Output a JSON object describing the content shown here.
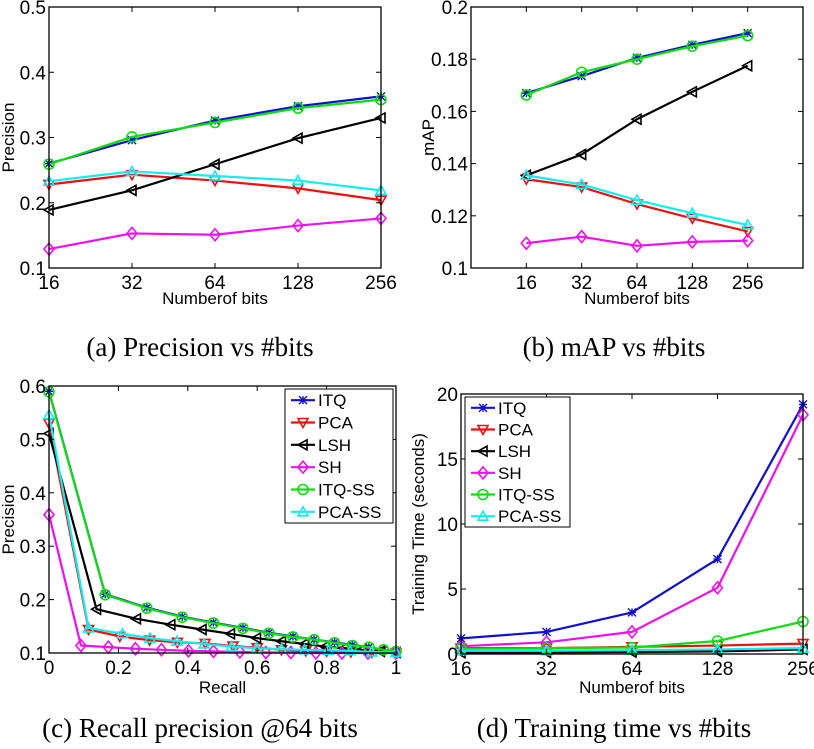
{
  "captions": {
    "a": "(a) Precision vs #bits",
    "b": "(b) mAP vs #bits",
    "c": "(c) Recall precision @64 bits",
    "d": "(d) Training time vs #bits"
  },
  "colors": {
    "ITQ": "#1010d0",
    "PCA": "#ee1010",
    "LSH": "#000000",
    "SH": "#ee10ee",
    "ITQ-SS": "#10dd10",
    "PCA-SS": "#10eeee"
  },
  "chart_data": [
    {
      "type": "line",
      "xlabel": "Numberof bits",
      "ylabel": "Precision",
      "xscale": "log2",
      "xlim": [
        16,
        256
      ],
      "ylim": [
        0.1,
        0.5
      ],
      "xticks": [
        16,
        32,
        64,
        128,
        256
      ],
      "yticks": [
        0.1,
        0.2,
        0.3,
        0.4,
        0.5
      ],
      "x": [
        16,
        32,
        64,
        128,
        256
      ],
      "legend": false,
      "series": [
        {
          "name": "ITQ",
          "marker": "star",
          "values": [
            0.26,
            0.296,
            0.326,
            0.348,
            0.363
          ]
        },
        {
          "name": "PCA",
          "marker": "triangle-down",
          "values": [
            0.228,
            0.243,
            0.234,
            0.222,
            0.204
          ]
        },
        {
          "name": "LSH",
          "marker": "triangle-left",
          "values": [
            0.189,
            0.219,
            0.259,
            0.299,
            0.33
          ]
        },
        {
          "name": "SH",
          "marker": "diamond",
          "values": [
            0.129,
            0.153,
            0.151,
            0.165,
            0.176
          ]
        },
        {
          "name": "ITQ-SS",
          "marker": "circle",
          "values": [
            0.259,
            0.301,
            0.323,
            0.345,
            0.358
          ]
        },
        {
          "name": "PCA-SS",
          "marker": "triangle-up",
          "values": [
            0.233,
            0.248,
            0.241,
            0.234,
            0.219
          ]
        }
      ]
    },
    {
      "type": "line",
      "xlabel": "Numberof bits",
      "ylabel": "mAP",
      "xscale": "log2",
      "xlim": [
        8,
        512
      ],
      "ylim": [
        0.1,
        0.2
      ],
      "xticks": [
        16,
        32,
        64,
        128,
        256
      ],
      "yticks": [
        0.1,
        0.12,
        0.14,
        0.16,
        0.18,
        0.2
      ],
      "x": [
        16,
        32,
        64,
        128,
        256
      ],
      "legend": false,
      "series": [
        {
          "name": "ITQ",
          "marker": "star",
          "values": [
            0.167,
            0.1735,
            0.1805,
            0.1855,
            0.19
          ]
        },
        {
          "name": "PCA",
          "marker": "triangle-down",
          "values": [
            0.134,
            0.131,
            0.1245,
            0.119,
            0.114
          ]
        },
        {
          "name": "LSH",
          "marker": "triangle-left",
          "values": [
            0.1355,
            0.1435,
            0.157,
            0.1675,
            0.1775
          ]
        },
        {
          "name": "SH",
          "marker": "diamond",
          "values": [
            0.1095,
            0.112,
            0.1085,
            0.11,
            0.1105
          ]
        },
        {
          "name": "ITQ-SS",
          "marker": "circle",
          "values": [
            0.1663,
            0.175,
            0.18,
            0.185,
            0.189
          ]
        },
        {
          "name": "PCA-SS",
          "marker": "triangle-up",
          "values": [
            0.1355,
            0.132,
            0.126,
            0.121,
            0.1165
          ]
        }
      ]
    },
    {
      "type": "line",
      "xlabel": "Recall",
      "ylabel": "Precision",
      "xscale": "linear",
      "xlim": [
        0,
        1
      ],
      "ylim": [
        0.1,
        0.6
      ],
      "xticks": [
        0,
        0.2,
        0.4,
        0.6,
        0.8,
        1
      ],
      "yticks": [
        0.1,
        0.2,
        0.3,
        0.4,
        0.5,
        0.6
      ],
      "legend": "top-right",
      "series": [
        {
          "name": "ITQ",
          "marker": "star",
          "x": [
            0,
            0.162,
            0.282,
            0.384,
            0.474,
            0.559,
            0.634,
            0.703,
            0.764,
            0.823,
            0.874,
            0.922,
            0.964,
            1
          ],
          "values": [
            0.59,
            0.21,
            0.185,
            0.168,
            0.157,
            0.147,
            0.138,
            0.131,
            0.125,
            0.12,
            0.115,
            0.111,
            0.106,
            0.103
          ]
        },
        {
          "name": "PCA",
          "marker": "triangle-down",
          "x": [
            0,
            0.114,
            0.204,
            0.29,
            0.37,
            0.45,
            0.53,
            0.6,
            0.67,
            0.74,
            0.8,
            0.87,
            0.93,
            1
          ],
          "values": [
            0.53,
            0.144,
            0.131,
            0.124,
            0.12,
            0.118,
            0.113,
            0.11,
            0.106,
            0.104,
            0.103,
            0.102,
            0.101,
            0.1
          ]
        },
        {
          "name": "LSH",
          "marker": "triangle-left",
          "x": [
            0,
            0.137,
            0.252,
            0.351,
            0.441,
            0.523,
            0.598,
            0.67,
            0.736,
            0.796,
            0.85,
            0.901,
            0.955,
            1
          ],
          "values": [
            0.511,
            0.182,
            0.164,
            0.153,
            0.144,
            0.136,
            0.128,
            0.122,
            0.117,
            0.112,
            0.109,
            0.106,
            0.103,
            0.101
          ]
        },
        {
          "name": "SH",
          "marker": "diamond",
          "x": [
            0,
            0.092,
            0.171,
            0.249,
            0.324,
            0.402,
            0.474,
            0.55,
            0.625,
            0.697,
            0.769,
            0.844,
            0.919,
            1
          ],
          "values": [
            0.359,
            0.114,
            0.111,
            0.108,
            0.106,
            0.104,
            0.103,
            0.102,
            0.101,
            0.101,
            0.1,
            0.1,
            0.1,
            0.1
          ]
        },
        {
          "name": "ITQ-SS",
          "marker": "circle",
          "x": [
            0,
            0.162,
            0.282,
            0.384,
            0.474,
            0.559,
            0.634,
            0.703,
            0.764,
            0.823,
            0.874,
            0.922,
            0.964,
            1
          ],
          "values": [
            0.589,
            0.209,
            0.184,
            0.167,
            0.156,
            0.146,
            0.137,
            0.13,
            0.125,
            0.119,
            0.114,
            0.111,
            0.106,
            0.103
          ]
        },
        {
          "name": "PCA-SS",
          "marker": "triangle-up",
          "x": [
            0,
            0.114,
            0.212,
            0.291,
            0.369,
            0.447,
            0.526,
            0.598,
            0.67,
            0.736,
            0.805,
            0.868,
            0.93,
            1
          ],
          "values": [
            0.546,
            0.147,
            0.136,
            0.128,
            0.122,
            0.117,
            0.112,
            0.109,
            0.107,
            0.106,
            0.105,
            0.104,
            0.102,
            0.101
          ]
        }
      ]
    },
    {
      "type": "line",
      "xlabel": "Numberof bits",
      "ylabel": "Training Time (seconds)",
      "xscale": "log2",
      "xlim": [
        16,
        256
      ],
      "ylim": [
        0,
        20
      ],
      "xticks": [
        16,
        32,
        64,
        128,
        256
      ],
      "yticks": [
        0,
        5,
        10,
        15,
        20
      ],
      "x": [
        16,
        32,
        64,
        128,
        256
      ],
      "legend": "top-left",
      "series": [
        {
          "name": "ITQ",
          "marker": "star",
          "values": [
            1.2,
            1.7,
            3.2,
            7.3,
            19.2
          ]
        },
        {
          "name": "PCA",
          "marker": "triangle-down",
          "values": [
            0.45,
            0.45,
            0.55,
            0.65,
            0.8
          ]
        },
        {
          "name": "LSH",
          "marker": "triangle-left",
          "values": [
            0.1,
            0.12,
            0.15,
            0.2,
            0.35
          ]
        },
        {
          "name": "SH",
          "marker": "diamond",
          "values": [
            0.6,
            0.9,
            1.7,
            5.1,
            18.4
          ]
        },
        {
          "name": "ITQ-SS",
          "marker": "circle",
          "values": [
            0.4,
            0.45,
            0.5,
            1.0,
            2.5
          ]
        },
        {
          "name": "PCA-SS",
          "marker": "triangle-up",
          "values": [
            0.25,
            0.25,
            0.3,
            0.35,
            0.45
          ]
        }
      ]
    }
  ]
}
